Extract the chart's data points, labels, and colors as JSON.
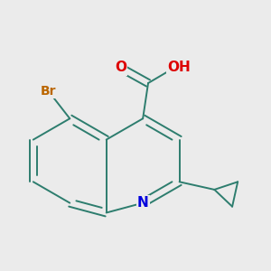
{
  "bg_color": "#ebebeb",
  "bond_color": "#2d7d6e",
  "bond_width": 1.4,
  "atom_colors": {
    "N": "#0000dd",
    "O": "#dd0000",
    "Br": "#bb6600",
    "H": "#777777",
    "C": "#2d7d6e"
  },
  "font_size": 10.5,
  "ring_r": 0.48
}
